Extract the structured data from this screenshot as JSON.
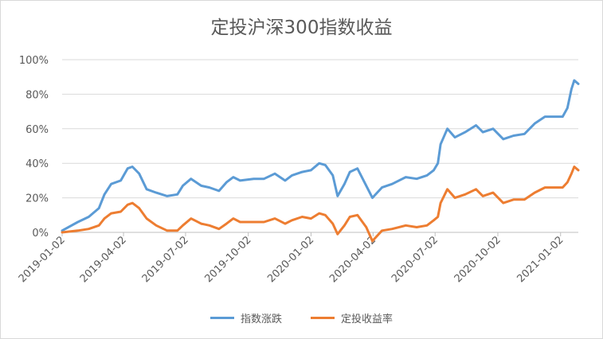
{
  "chart_data": {
    "type": "line",
    "title": "定投沪深300指数收益",
    "xlabel": "",
    "ylabel": "",
    "ylim": [
      0,
      100
    ],
    "y_ticks": [
      "0%",
      "20%",
      "40%",
      "60%",
      "80%",
      "100%"
    ],
    "x_range": [
      "2019-01-02",
      "2021-01-28"
    ],
    "x_ticks": [
      "2019-01-02",
      "2019-04-02",
      "2019-07-02",
      "2019-10-02",
      "2020-01-02",
      "2020-04-02",
      "2020-07-02",
      "2020-10-02",
      "2021-01-02"
    ],
    "grid": "horizontal",
    "legend_position": "bottom",
    "series": [
      {
        "name": "指数涨跌",
        "color": "#5b9bd5",
        "x": [
          "2019-01-02",
          "2019-01-25",
          "2019-02-10",
          "2019-02-25",
          "2019-03-05",
          "2019-03-15",
          "2019-03-29",
          "2019-04-08",
          "2019-04-15",
          "2019-04-25",
          "2019-05-06",
          "2019-05-20",
          "2019-06-05",
          "2019-06-20",
          "2019-06-28",
          "2019-07-10",
          "2019-07-25",
          "2019-08-06",
          "2019-08-20",
          "2019-08-31",
          "2019-09-10",
          "2019-09-20",
          "2019-10-10",
          "2019-10-25",
          "2019-11-10",
          "2019-11-25",
          "2019-12-05",
          "2019-12-20",
          "2020-01-02",
          "2020-01-14",
          "2020-01-23",
          "2020-02-03",
          "2020-02-10",
          "2020-02-20",
          "2020-02-28",
          "2020-03-10",
          "2020-03-23",
          "2020-04-01",
          "2020-04-15",
          "2020-04-30",
          "2020-05-20",
          "2020-06-05",
          "2020-06-20",
          "2020-06-30",
          "2020-07-06",
          "2020-07-10",
          "2020-07-20",
          "2020-07-31",
          "2020-08-15",
          "2020-08-31",
          "2020-09-10",
          "2020-09-25",
          "2020-10-10",
          "2020-10-25",
          "2020-11-10",
          "2020-11-25",
          "2020-12-10",
          "2020-12-25",
          "2021-01-05",
          "2021-01-12",
          "2021-01-18",
          "2021-01-22",
          "2021-01-28"
        ],
        "values": [
          1,
          6,
          9,
          14,
          22,
          28,
          30,
          37,
          38,
          34,
          25,
          23,
          21,
          22,
          27,
          31,
          27,
          26,
          24,
          29,
          32,
          30,
          31,
          31,
          34,
          30,
          33,
          35,
          36,
          40,
          39,
          33,
          21,
          28,
          35,
          37,
          27,
          20,
          26,
          28,
          32,
          31,
          33,
          36,
          40,
          51,
          60,
          55,
          58,
          62,
          58,
          60,
          54,
          56,
          57,
          63,
          67,
          67,
          67,
          72,
          83,
          88,
          86
        ]
      },
      {
        "name": "定投收益率",
        "color": "#ed7d31",
        "x": [
          "2019-01-02",
          "2019-01-25",
          "2019-02-10",
          "2019-02-25",
          "2019-03-05",
          "2019-03-15",
          "2019-03-29",
          "2019-04-08",
          "2019-04-15",
          "2019-04-25",
          "2019-05-06",
          "2019-05-20",
          "2019-06-05",
          "2019-06-20",
          "2019-06-28",
          "2019-07-10",
          "2019-07-25",
          "2019-08-06",
          "2019-08-20",
          "2019-08-31",
          "2019-09-10",
          "2019-09-20",
          "2019-10-10",
          "2019-10-25",
          "2019-11-10",
          "2019-11-25",
          "2019-12-05",
          "2019-12-20",
          "2020-01-02",
          "2020-01-14",
          "2020-01-23",
          "2020-02-03",
          "2020-02-10",
          "2020-02-20",
          "2020-02-28",
          "2020-03-10",
          "2020-03-23",
          "2020-04-01",
          "2020-04-15",
          "2020-04-30",
          "2020-05-20",
          "2020-06-05",
          "2020-06-20",
          "2020-06-30",
          "2020-07-06",
          "2020-07-10",
          "2020-07-20",
          "2020-07-31",
          "2020-08-15",
          "2020-08-31",
          "2020-09-10",
          "2020-09-25",
          "2020-10-10",
          "2020-10-25",
          "2020-11-10",
          "2020-11-25",
          "2020-12-10",
          "2020-12-25",
          "2021-01-05",
          "2021-01-12",
          "2021-01-18",
          "2021-01-22",
          "2021-01-28"
        ],
        "values": [
          0,
          1,
          2,
          4,
          8,
          11,
          12,
          16,
          17,
          14,
          8,
          4,
          1,
          1,
          4,
          8,
          5,
          4,
          2,
          5,
          8,
          6,
          6,
          6,
          8,
          5,
          7,
          9,
          8,
          11,
          10,
          5,
          -1,
          4,
          9,
          10,
          3,
          -5,
          1,
          2,
          4,
          3,
          4,
          7,
          9,
          17,
          25,
          20,
          22,
          25,
          21,
          23,
          17,
          19,
          19,
          23,
          26,
          26,
          26,
          29,
          34,
          38,
          36
        ]
      }
    ]
  }
}
